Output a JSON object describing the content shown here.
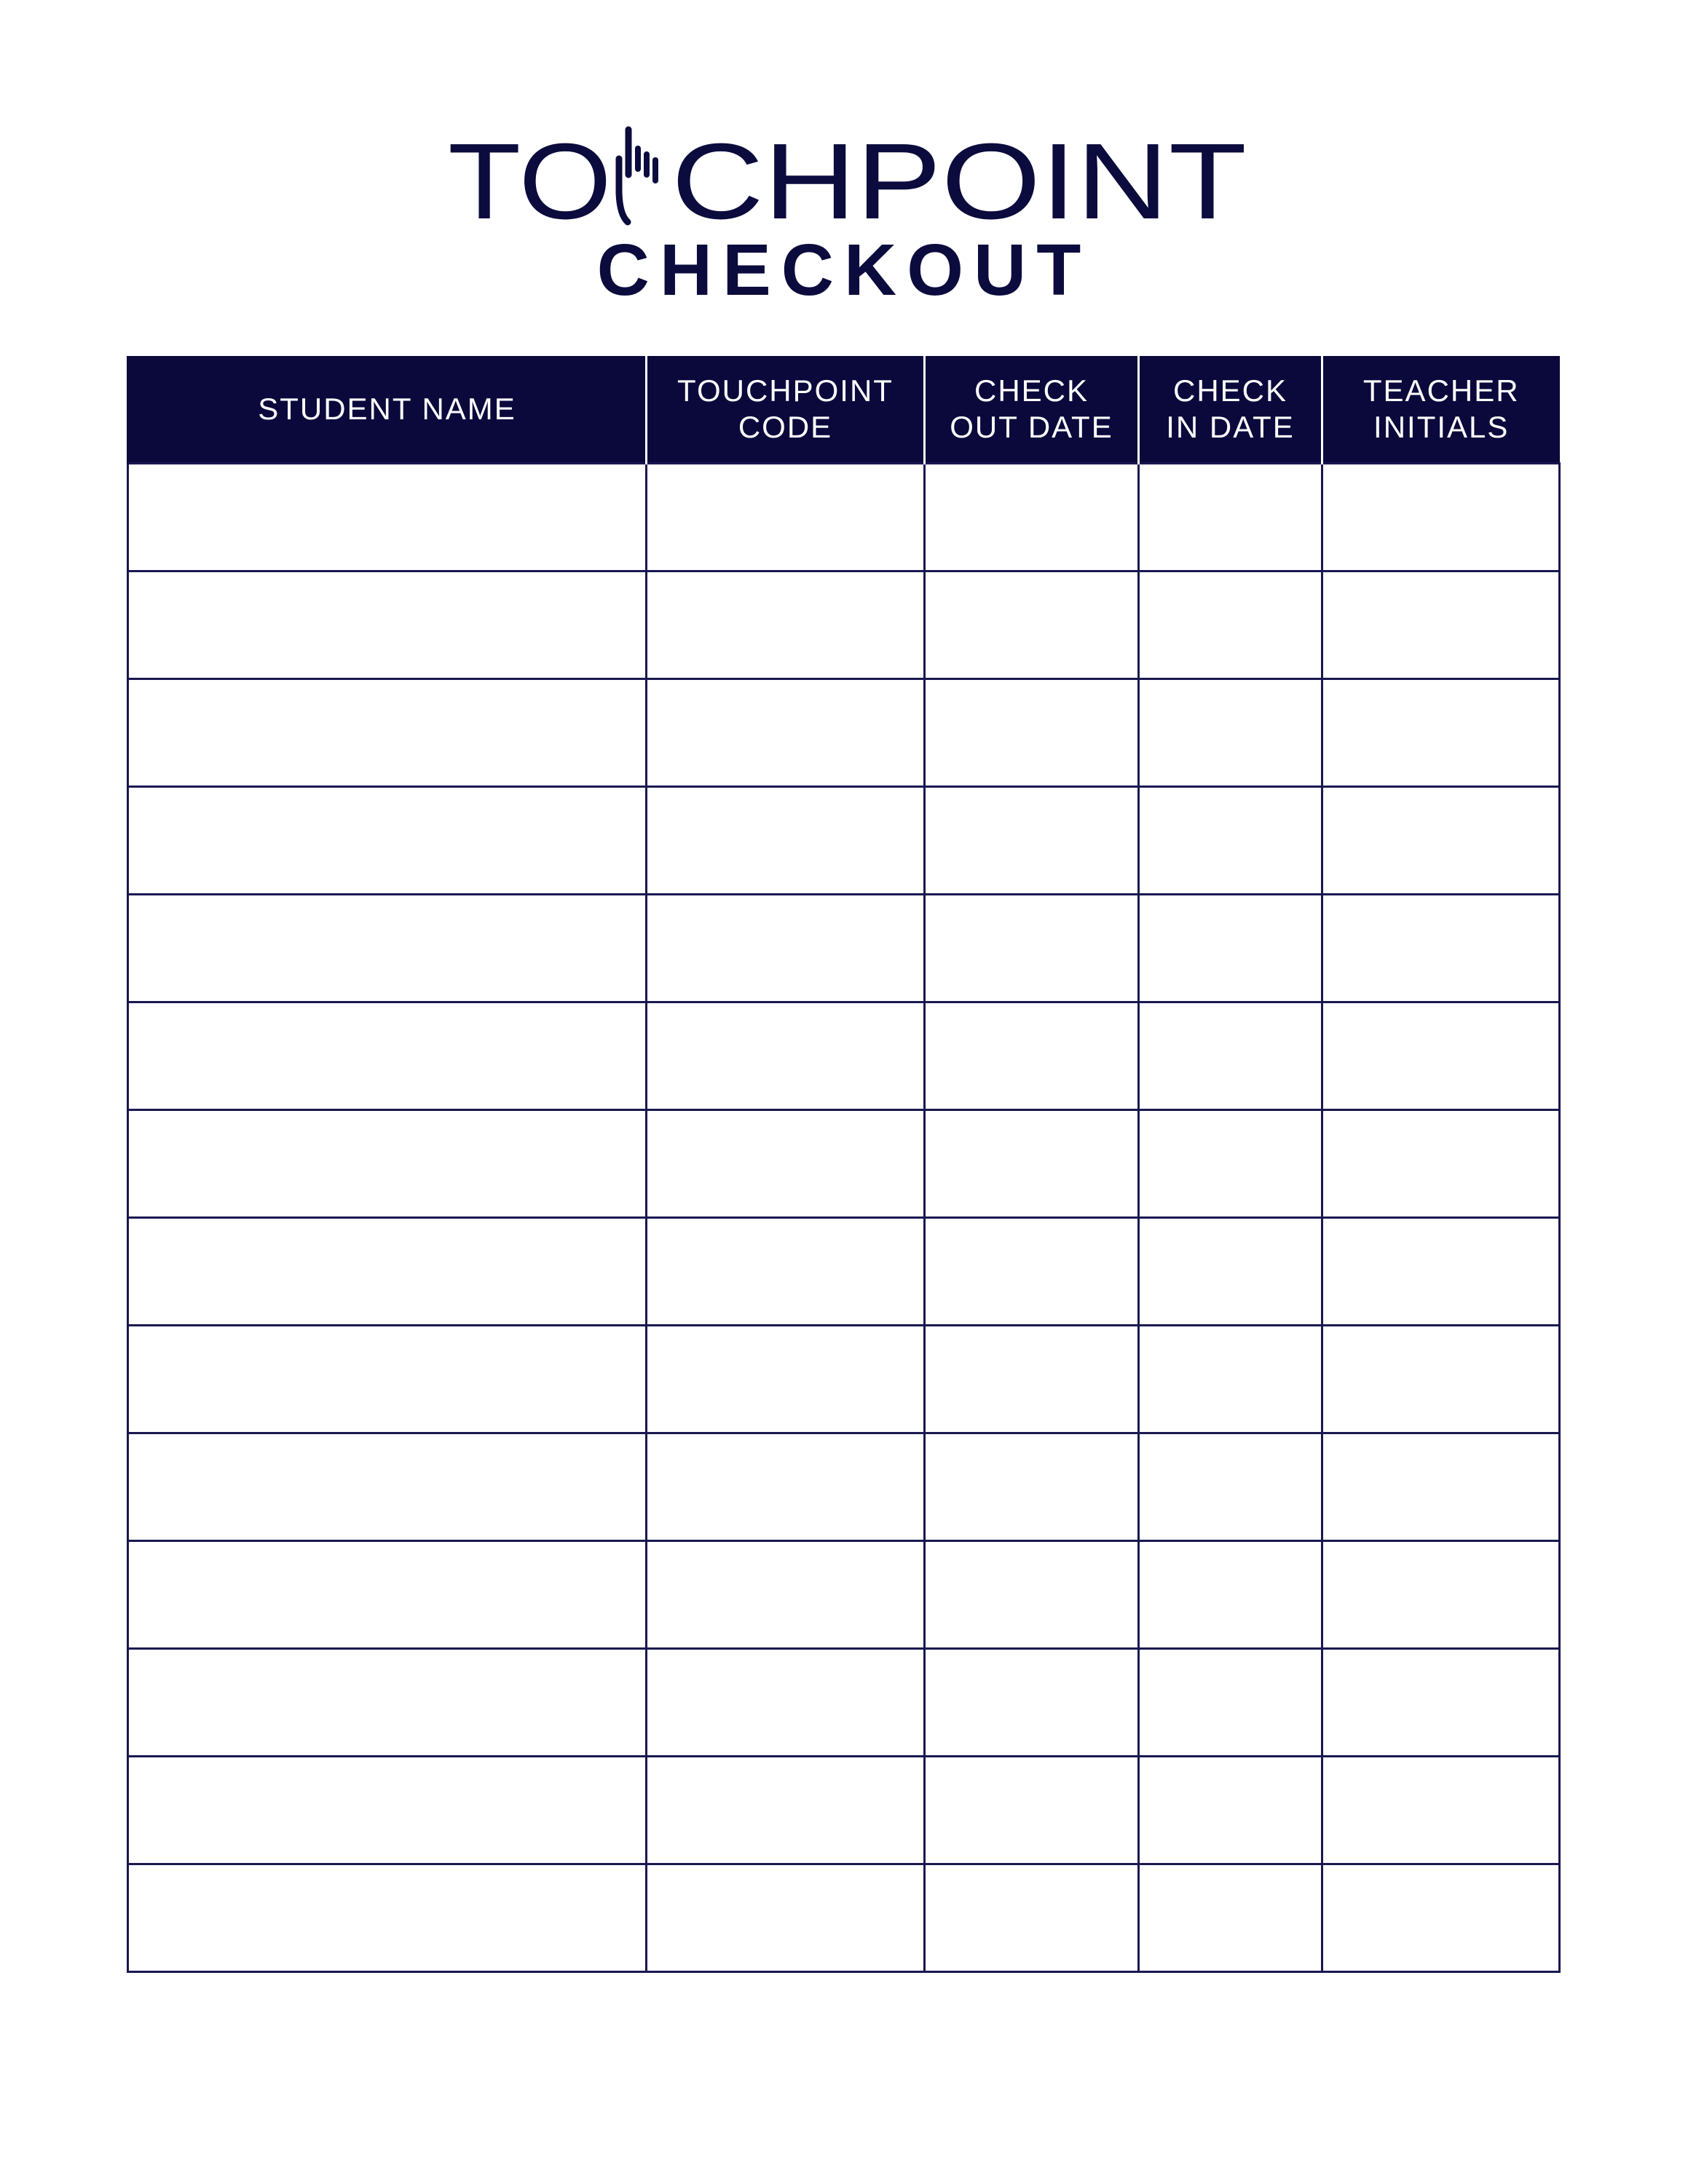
{
  "logo": {
    "text": "TOUCHPOINT",
    "icon": "pointing-hand-icon",
    "color": "#0c0b3d"
  },
  "subtitle": "CHECKOUT",
  "table": {
    "header_color": "#0b093c",
    "columns": [
      {
        "line1": "STUDENT NAME",
        "line2": ""
      },
      {
        "line1": "TOUCHPOINT",
        "line2": "CODE"
      },
      {
        "line1": "CHECK",
        "line2": "OUT DATE"
      },
      {
        "line1": "CHECK",
        "line2": "IN DATE"
      },
      {
        "line1": "TEACHER",
        "line2": "INITIALS"
      }
    ],
    "rows": [
      [
        "",
        "",
        "",
        "",
        ""
      ],
      [
        "",
        "",
        "",
        "",
        ""
      ],
      [
        "",
        "",
        "",
        "",
        ""
      ],
      [
        "",
        "",
        "",
        "",
        ""
      ],
      [
        "",
        "",
        "",
        "",
        ""
      ],
      [
        "",
        "",
        "",
        "",
        ""
      ],
      [
        "",
        "",
        "",
        "",
        ""
      ],
      [
        "",
        "",
        "",
        "",
        ""
      ],
      [
        "",
        "",
        "",
        "",
        ""
      ],
      [
        "",
        "",
        "",
        "",
        ""
      ],
      [
        "",
        "",
        "",
        "",
        ""
      ],
      [
        "",
        "",
        "",
        "",
        ""
      ],
      [
        "",
        "",
        "",
        "",
        ""
      ],
      [
        "",
        "",
        "",
        "",
        ""
      ]
    ]
  }
}
